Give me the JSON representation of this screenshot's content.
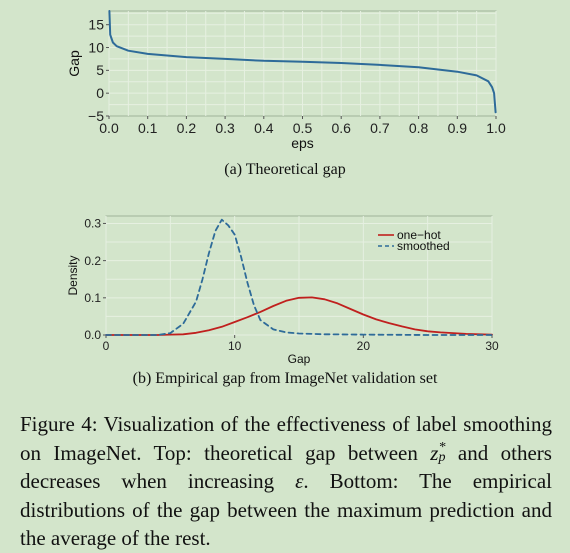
{
  "chart_data": [
    {
      "type": "line",
      "caption": "(a) Theoretical gap",
      "xlabel": "eps",
      "ylabel": "Gap",
      "xlim": [
        0.0,
        1.0
      ],
      "ylim": [
        -5,
        18
      ],
      "xticks": [
        "0.0",
        "0.1",
        "0.2",
        "0.3",
        "0.4",
        "0.5",
        "0.6",
        "0.7",
        "0.8",
        "0.9",
        "1.0"
      ],
      "yticks": [
        "−5",
        "0",
        "5",
        "10",
        "15"
      ],
      "grid": true,
      "series": [
        {
          "color": "#2e6b99",
          "x": [
            0.001,
            0.003,
            0.01,
            0.02,
            0.05,
            0.1,
            0.2,
            0.3,
            0.4,
            0.5,
            0.6,
            0.7,
            0.8,
            0.9,
            0.95,
            0.98,
            0.99,
            0.995,
            0.999
          ],
          "y": [
            18.0,
            12.8,
            11.1,
            10.3,
            9.3,
            8.6,
            7.9,
            7.5,
            7.1,
            6.9,
            6.6,
            6.2,
            5.7,
            4.7,
            3.9,
            2.6,
            1.3,
            0.0,
            -4.2
          ]
        }
      ]
    },
    {
      "type": "line",
      "caption": "(b) Empirical gap from ImageNet validation set",
      "xlabel": "Gap",
      "ylabel": "Density",
      "xlim": [
        0,
        30
      ],
      "ylim": [
        0,
        0.32
      ],
      "xticks": [
        "0",
        "10",
        "20",
        "30"
      ],
      "yticks": [
        "0.0",
        "0.1",
        "0.2",
        "0.3"
      ],
      "grid": true,
      "legend_position": "top-right",
      "series": [
        {
          "name": "one−hot",
          "color": "#c0201e",
          "dash": "solid",
          "x": [
            0,
            2,
            4,
            5,
            6,
            7,
            8,
            9,
            10,
            11,
            12,
            13,
            14,
            15,
            16,
            17,
            18,
            19,
            20,
            21,
            22,
            23,
            24,
            25,
            26,
            27,
            28,
            29,
            30
          ],
          "y": [
            0.0,
            0.0,
            0.0,
            0.001,
            0.002,
            0.006,
            0.013,
            0.022,
            0.035,
            0.048,
            0.062,
            0.078,
            0.092,
            0.1,
            0.101,
            0.096,
            0.085,
            0.07,
            0.055,
            0.042,
            0.032,
            0.023,
            0.015,
            0.01,
            0.007,
            0.005,
            0.003,
            0.002,
            0.001
          ]
        },
        {
          "name": "smoothed",
          "color": "#2e6b99",
          "dash": "dashed",
          "x": [
            0,
            2,
            4,
            5,
            6,
            7,
            7.5,
            8,
            8.5,
            9,
            9.5,
            10,
            10.5,
            11,
            11.5,
            12,
            13,
            14,
            15,
            17,
            20,
            25,
            30
          ],
          "y": [
            0.0,
            0.0,
            0.0,
            0.005,
            0.03,
            0.09,
            0.15,
            0.22,
            0.28,
            0.31,
            0.295,
            0.27,
            0.21,
            0.14,
            0.08,
            0.04,
            0.015,
            0.007,
            0.004,
            0.002,
            0.001,
            0.0,
            0.0
          ]
        }
      ]
    }
  ],
  "figure_caption": {
    "prefix": "Figure 4: Visualization of the effectiveness of label smoothing on ImageNet. Top: theoretical gap between ",
    "var_main": "z",
    "var_sup": "*",
    "var_sub": "p",
    "middle": " and others decreases when increasing ",
    "epsilon": "ε",
    "suffix": ". Bottom: The empirical distributions of the gap between the maximum prediction and the average of the rest."
  },
  "colors": {
    "background": "#d3e5cb",
    "plot_background": "#d3e5cb",
    "grid": "#e6f0e1"
  }
}
